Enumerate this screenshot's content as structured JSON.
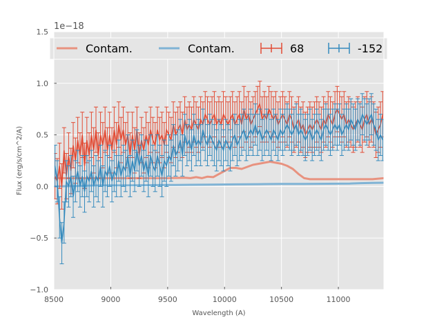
{
  "chart_data": {
    "type": "line",
    "title": "",
    "xlabel": "Wavelength (A)",
    "ylabel": "Flux (erg/s/cm^2/A)",
    "y_offset_label": "1e−18",
    "xlim": [
      8500,
      11400
    ],
    "ylim": [
      -1.0,
      1.5
    ],
    "xticks": [
      "8500",
      "9000",
      "9500",
      "10000",
      "10500",
      "11000"
    ],
    "yticks": [
      "−1.0",
      "−0.5",
      "0.0",
      "0.5",
      "1.0",
      "1.5"
    ],
    "grid": true,
    "legend_placement": "top",
    "colors": {
      "red": "#E24A33",
      "blue": "#348ABD",
      "contam_red": "#E8927F",
      "contam_blue": "#7FB3D5",
      "panel_bg": "#E5E5E5"
    },
    "series": [
      {
        "name": "Contam.",
        "kind": "line",
        "color": "#E8927F",
        "x": [
          8500,
          8700,
          8900,
          9100,
          9300,
          9500,
          9650,
          9700,
          9750,
          9800,
          9850,
          9900,
          9950,
          10000,
          10050,
          10100,
          10150,
          10200,
          10250,
          10300,
          10350,
          10400,
          10450,
          10500,
          10550,
          10600,
          10650,
          10700,
          10750,
          10800,
          10900,
          11000,
          11100,
          11200,
          11300,
          11400
        ],
        "y": [
          0.08,
          0.08,
          0.08,
          0.08,
          0.08,
          0.08,
          0.085,
          0.08,
          0.09,
          0.08,
          0.095,
          0.09,
          0.12,
          0.15,
          0.18,
          0.18,
          0.17,
          0.19,
          0.21,
          0.22,
          0.23,
          0.24,
          0.23,
          0.22,
          0.2,
          0.17,
          0.12,
          0.08,
          0.07,
          0.07,
          0.07,
          0.07,
          0.07,
          0.07,
          0.07,
          0.08
        ]
      },
      {
        "name": "Contam.",
        "kind": "line",
        "color": "#7FB3D5",
        "x": [
          8500,
          8700,
          8900,
          9100,
          9300,
          9500,
          9700,
          9900,
          10100,
          10300,
          10500,
          10700,
          10900,
          11100,
          11200,
          11300,
          11400
        ],
        "y": [
          0.0,
          0.005,
          0.01,
          0.01,
          0.012,
          0.014,
          0.016,
          0.018,
          0.02,
          0.022,
          0.024,
          0.025,
          0.026,
          0.028,
          0.032,
          0.034,
          0.036
        ]
      },
      {
        "name": "68",
        "kind": "errorbar",
        "color": "#E24A33",
        "x": [
          8510,
          8530,
          8550,
          8570,
          8590,
          8610,
          8630,
          8650,
          8670,
          8690,
          8710,
          8730,
          8750,
          8770,
          8790,
          8810,
          8830,
          8850,
          8870,
          8890,
          8910,
          8930,
          8950,
          8970,
          8990,
          9010,
          9030,
          9050,
          9070,
          9090,
          9110,
          9130,
          9150,
          9170,
          9190,
          9210,
          9230,
          9250,
          9270,
          9290,
          9310,
          9330,
          9350,
          9370,
          9390,
          9410,
          9430,
          9450,
          9470,
          9490,
          9510,
          9530,
          9550,
          9570,
          9590,
          9610,
          9630,
          9650,
          9670,
          9690,
          9710,
          9730,
          9750,
          9770,
          9790,
          9810,
          9830,
          9850,
          9870,
          9890,
          9910,
          9930,
          9950,
          9970,
          9990,
          10010,
          10030,
          10050,
          10070,
          10090,
          10110,
          10130,
          10150,
          10170,
          10190,
          10210,
          10230,
          10250,
          10270,
          10290,
          10310,
          10330,
          10350,
          10370,
          10390,
          10410,
          10430,
          10450,
          10470,
          10490,
          10510,
          10530,
          10550,
          10570,
          10590,
          10610,
          10630,
          10650,
          10670,
          10690,
          10710,
          10730,
          10750,
          10770,
          10790,
          10810,
          10830,
          10850,
          10870,
          10890,
          10910,
          10930,
          10950,
          10970,
          10990,
          11010,
          11030,
          11050,
          11070,
          11090,
          11110,
          11130,
          11150,
          11170,
          11190,
          11210,
          11230,
          11250,
          11270,
          11290,
          11310,
          11330,
          11350,
          11370,
          11390
        ],
        "y": [
          0.1,
          0.05,
          0.2,
          0.0,
          0.35,
          0.1,
          0.3,
          0.15,
          0.4,
          0.25,
          0.45,
          0.3,
          0.5,
          0.2,
          0.45,
          0.3,
          0.5,
          0.35,
          0.55,
          0.3,
          0.5,
          0.4,
          0.55,
          0.35,
          0.5,
          0.35,
          0.55,
          0.4,
          0.6,
          0.45,
          0.55,
          0.4,
          0.5,
          0.3,
          0.5,
          0.35,
          0.55,
          0.3,
          0.45,
          0.35,
          0.5,
          0.4,
          0.55,
          0.45,
          0.4,
          0.55,
          0.45,
          0.5,
          0.4,
          0.55,
          0.5,
          0.45,
          0.6,
          0.5,
          0.55,
          0.6,
          0.5,
          0.65,
          0.55,
          0.6,
          0.55,
          0.65,
          0.6,
          0.55,
          0.65,
          0.6,
          0.7,
          0.65,
          0.6,
          0.65,
          0.7,
          0.6,
          0.65,
          0.6,
          0.7,
          0.65,
          0.6,
          0.65,
          0.7,
          0.6,
          0.65,
          0.7,
          0.6,
          0.75,
          0.65,
          0.7,
          0.6,
          0.65,
          0.7,
          0.75,
          0.8,
          0.65,
          0.7,
          0.65,
          0.75,
          0.7,
          0.65,
          0.7,
          0.6,
          0.65,
          0.7,
          0.65,
          0.6,
          0.7,
          0.65,
          0.55,
          0.6,
          0.65,
          0.55,
          0.6,
          0.5,
          0.55,
          0.6,
          0.55,
          0.6,
          0.65,
          0.6,
          0.55,
          0.65,
          0.6,
          0.7,
          0.65,
          0.6,
          0.7,
          0.75,
          0.7,
          0.65,
          0.7,
          0.6,
          0.65,
          0.6,
          0.55,
          0.6,
          0.65,
          0.6,
          0.55,
          0.65,
          0.7,
          0.6,
          0.65,
          0.6,
          0.5,
          0.55,
          0.6,
          0.7
        ],
        "yerr": 0.22
      },
      {
        "name": "-152",
        "kind": "errorbar",
        "color": "#348ABD",
        "x": [
          8510,
          8530,
          8550,
          8570,
          8590,
          8610,
          8630,
          8650,
          8670,
          8690,
          8710,
          8730,
          8750,
          8770,
          8790,
          8810,
          8830,
          8850,
          8870,
          8890,
          8910,
          8930,
          8950,
          8970,
          8990,
          9010,
          9030,
          9050,
          9070,
          9090,
          9110,
          9130,
          9150,
          9170,
          9190,
          9210,
          9230,
          9250,
          9270,
          9290,
          9310,
          9330,
          9350,
          9370,
          9390,
          9410,
          9430,
          9450,
          9470,
          9490,
          9510,
          9530,
          9550,
          9570,
          9590,
          9610,
          9630,
          9650,
          9670,
          9690,
          9710,
          9730,
          9750,
          9770,
          9790,
          9810,
          9830,
          9850,
          9870,
          9890,
          9910,
          9930,
          9950,
          9970,
          9990,
          10010,
          10030,
          10050,
          10070,
          10090,
          10110,
          10130,
          10150,
          10170,
          10190,
          10210,
          10230,
          10250,
          10270,
          10290,
          10310,
          10330,
          10350,
          10370,
          10390,
          10410,
          10430,
          10450,
          10470,
          10490,
          10510,
          10530,
          10550,
          10570,
          10590,
          10610,
          10630,
          10650,
          10670,
          10690,
          10710,
          10730,
          10750,
          10770,
          10790,
          10810,
          10830,
          10850,
          10870,
          10890,
          10910,
          10930,
          10950,
          10970,
          10990,
          11010,
          11030,
          11050,
          11070,
          11090,
          11110,
          11130,
          11150,
          11170,
          11190,
          11210,
          11230,
          11250,
          11270,
          11290,
          11310,
          11330,
          11350,
          11370,
          11390
        ],
        "y": [
          0.2,
          0.05,
          -0.3,
          -0.55,
          -0.35,
          0.05,
          0.0,
          0.1,
          -0.1,
          0.05,
          0.15,
          0.0,
          0.1,
          -0.05,
          0.1,
          0.05,
          0.15,
          0.0,
          0.1,
          0.05,
          0.2,
          0.0,
          0.15,
          0.1,
          0.2,
          0.05,
          0.15,
          0.1,
          0.25,
          0.1,
          0.2,
          0.15,
          0.3,
          0.1,
          0.25,
          0.15,
          0.35,
          0.2,
          0.3,
          0.15,
          0.25,
          0.1,
          0.3,
          0.2,
          0.15,
          0.3,
          0.2,
          0.1,
          0.25,
          0.2,
          0.3,
          0.25,
          0.4,
          0.3,
          0.35,
          0.45,
          0.3,
          0.5,
          0.4,
          0.45,
          0.35,
          0.5,
          0.4,
          0.45,
          0.4,
          0.55,
          0.45,
          0.4,
          0.5,
          0.45,
          0.4,
          0.35,
          0.45,
          0.4,
          0.35,
          0.45,
          0.4,
          0.35,
          0.45,
          0.5,
          0.4,
          0.45,
          0.5,
          0.55,
          0.45,
          0.5,
          0.55,
          0.5,
          0.6,
          0.5,
          0.55,
          0.45,
          0.5,
          0.55,
          0.5,
          0.45,
          0.55,
          0.5,
          0.45,
          0.55,
          0.5,
          0.55,
          0.6,
          0.55,
          0.5,
          0.55,
          0.6,
          0.5,
          0.55,
          0.5,
          0.45,
          0.5,
          0.55,
          0.45,
          0.5,
          0.55,
          0.5,
          0.45,
          0.55,
          0.6,
          0.55,
          0.5,
          0.55,
          0.6,
          0.55,
          0.6,
          0.5,
          0.55,
          0.6,
          0.55,
          0.65,
          0.6,
          0.55,
          0.65,
          0.6,
          0.7,
          0.65,
          0.6,
          0.65,
          0.7,
          0.6,
          0.55,
          0.45,
          0.5,
          0.45
        ],
        "yerr": 0.2
      }
    ]
  }
}
